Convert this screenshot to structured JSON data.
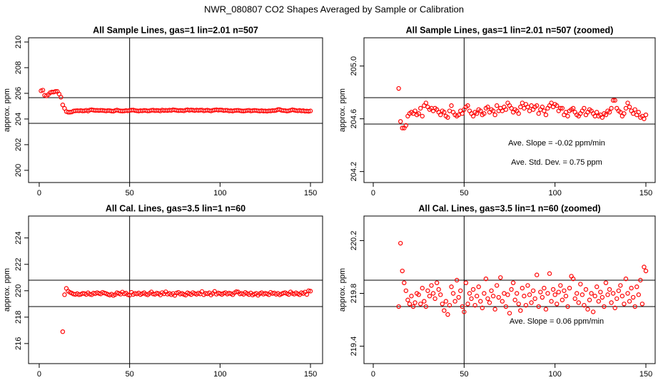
{
  "title": "NWR_080807  CO2 Shapes Averaged by Sample or Calibration",
  "chart_data": [
    {
      "type": "scatter",
      "title": "All Sample Lines, gas=1 lin=2.01 n=507",
      "ylabel": "approx. ppm",
      "color": "#ff0000",
      "xlim": [
        -5.9,
        156.7
      ],
      "ylim": [
        199.05,
        210.33
      ],
      "xticks": [
        0,
        50,
        100,
        150
      ],
      "yticks": [
        200,
        202,
        204,
        206,
        208,
        210
      ],
      "hlines": [
        205.66,
        203.66
      ],
      "vline": 50,
      "x": [
        1,
        2,
        3,
        4,
        5,
        6,
        7,
        8,
        9,
        10,
        11,
        12,
        13,
        14,
        15,
        16,
        17,
        18,
        19,
        20,
        21,
        22,
        23,
        24,
        25,
        26,
        27,
        28,
        29,
        30,
        31,
        32,
        33,
        34,
        35,
        36,
        37,
        38,
        39,
        40,
        41,
        42,
        43,
        44,
        45,
        46,
        47,
        48,
        49,
        50,
        51,
        52,
        53,
        54,
        55,
        56,
        57,
        58,
        59,
        60,
        61,
        62,
        63,
        64,
        65,
        66,
        67,
        68,
        69,
        70,
        71,
        72,
        73,
        74,
        75,
        76,
        77,
        78,
        79,
        80,
        81,
        82,
        83,
        84,
        85,
        86,
        87,
        88,
        89,
        90,
        91,
        92,
        93,
        94,
        95,
        96,
        97,
        98,
        99,
        100,
        101,
        102,
        103,
        104,
        105,
        106,
        107,
        108,
        109,
        110,
        111,
        112,
        113,
        114,
        115,
        116,
        117,
        118,
        119,
        120,
        121,
        122,
        123,
        124,
        125,
        126,
        127,
        128,
        129,
        130,
        131,
        132,
        133,
        134,
        135,
        136,
        137,
        138,
        139,
        140,
        141,
        142,
        143,
        144,
        145,
        146,
        147,
        148,
        149,
        150
      ],
      "values": [
        206.2,
        206.25,
        205.85,
        205.8,
        205.9,
        206.05,
        206.1,
        206.1,
        206.15,
        206.15,
        205.95,
        205.7,
        205.1,
        204.83,
        204.58,
        204.53,
        204.53,
        204.55,
        204.62,
        204.64,
        204.65,
        204.64,
        204.66,
        204.63,
        204.64,
        204.68,
        204.62,
        204.7,
        204.72,
        204.69,
        204.67,
        204.68,
        204.66,
        204.68,
        204.67,
        204.65,
        204.63,
        204.66,
        204.65,
        204.62,
        204.61,
        204.66,
        204.7,
        204.65,
        204.63,
        204.62,
        204.63,
        204.66,
        204.64,
        204.67,
        204.69,
        204.7,
        204.66,
        204.64,
        204.62,
        204.65,
        204.64,
        204.67,
        204.66,
        204.63,
        204.64,
        204.68,
        204.69,
        204.65,
        204.67,
        204.66,
        204.63,
        204.7,
        204.66,
        204.68,
        204.66,
        204.69,
        204.67,
        204.72,
        204.7,
        204.68,
        204.65,
        204.67,
        204.66,
        204.64,
        204.69,
        204.72,
        204.68,
        204.71,
        204.69,
        204.66,
        204.7,
        204.67,
        204.69,
        204.7,
        204.64,
        204.67,
        204.69,
        204.66,
        204.63,
        204.68,
        204.7,
        204.72,
        204.69,
        204.71,
        204.7,
        204.66,
        204.68,
        204.68,
        204.63,
        204.65,
        204.62,
        204.66,
        204.67,
        204.68,
        204.65,
        204.63,
        204.62,
        204.64,
        204.66,
        204.68,
        204.63,
        204.65,
        204.67,
        204.66,
        204.64,
        204.62,
        204.65,
        204.62,
        204.63,
        204.61,
        204.64,
        204.63,
        204.66,
        204.65,
        204.68,
        204.74,
        204.74,
        204.68,
        204.66,
        204.65,
        204.62,
        204.64,
        204.68,
        204.72,
        204.69,
        204.66,
        204.64,
        204.67,
        204.63,
        204.65,
        204.61,
        204.62,
        204.6,
        204.63
      ]
    },
    {
      "type": "scatter",
      "title": "All Sample Lines, gas=1 lin=2.01 n=507 (zoomed)",
      "ylabel": "approx. ppm",
      "color": "#ff0000",
      "xlim": [
        -5.1,
        155.1
      ],
      "ylim": [
        204.117,
        205.214
      ],
      "xticks": [
        0,
        50,
        100,
        150
      ],
      "yticks": [
        204.2,
        204.6,
        {
          "value": 205,
          "label": "205.0"
        }
      ],
      "hlines": [
        204.76,
        204.56
      ],
      "vline": 50,
      "annotations": [
        "Ave. Slope =  -0.02  ppm/min",
        "Ave. Std. Dev. =  0.75  ppm"
      ],
      "x": [
        14,
        15,
        16,
        17,
        18,
        19,
        20,
        21,
        22,
        23,
        24,
        25,
        26,
        27,
        28,
        29,
        30,
        31,
        32,
        33,
        34,
        35,
        36,
        37,
        38,
        39,
        40,
        41,
        42,
        43,
        44,
        45,
        46,
        47,
        48,
        49,
        50,
        51,
        52,
        53,
        54,
        55,
        56,
        57,
        58,
        59,
        60,
        61,
        62,
        63,
        64,
        65,
        66,
        67,
        68,
        69,
        70,
        71,
        72,
        73,
        74,
        75,
        76,
        77,
        78,
        79,
        80,
        81,
        82,
        83,
        84,
        85,
        86,
        87,
        88,
        89,
        90,
        91,
        92,
        93,
        94,
        95,
        96,
        97,
        98,
        99,
        100,
        101,
        102,
        103,
        104,
        105,
        106,
        107,
        108,
        109,
        110,
        111,
        112,
        113,
        114,
        115,
        116,
        117,
        118,
        119,
        120,
        121,
        122,
        123,
        124,
        125,
        126,
        127,
        128,
        129,
        130,
        131,
        132,
        133,
        134,
        135,
        136,
        137,
        138,
        139,
        140,
        141,
        142,
        143,
        144,
        145,
        146,
        147,
        148,
        149,
        150
      ],
      "values": [
        204.83,
        204.58,
        204.53,
        204.53,
        204.55,
        204.62,
        204.64,
        204.65,
        204.64,
        204.66,
        204.63,
        204.64,
        204.68,
        204.62,
        204.7,
        204.72,
        204.69,
        204.67,
        204.68,
        204.66,
        204.68,
        204.67,
        204.65,
        204.63,
        204.66,
        204.65,
        204.62,
        204.61,
        204.66,
        204.7,
        204.65,
        204.63,
        204.62,
        204.63,
        204.66,
        204.64,
        204.67,
        204.69,
        204.7,
        204.66,
        204.64,
        204.62,
        204.65,
        204.64,
        204.67,
        204.66,
        204.63,
        204.64,
        204.68,
        204.69,
        204.65,
        204.67,
        204.66,
        204.63,
        204.7,
        204.66,
        204.68,
        204.66,
        204.69,
        204.67,
        204.72,
        204.7,
        204.68,
        204.65,
        204.67,
        204.66,
        204.64,
        204.69,
        204.72,
        204.68,
        204.71,
        204.69,
        204.66,
        204.7,
        204.67,
        204.69,
        204.7,
        204.64,
        204.67,
        204.69,
        204.66,
        204.63,
        204.68,
        204.7,
        204.72,
        204.69,
        204.71,
        204.7,
        204.66,
        204.68,
        204.68,
        204.63,
        204.65,
        204.62,
        204.66,
        204.67,
        204.68,
        204.65,
        204.63,
        204.62,
        204.64,
        204.66,
        204.68,
        204.63,
        204.65,
        204.67,
        204.66,
        204.64,
        204.62,
        204.65,
        204.62,
        204.63,
        204.61,
        204.64,
        204.63,
        204.66,
        204.65,
        204.68,
        204.74,
        204.74,
        204.68,
        204.66,
        204.65,
        204.62,
        204.64,
        204.68,
        204.72,
        204.69,
        204.66,
        204.64,
        204.67,
        204.63,
        204.65,
        204.61,
        204.62,
        204.6,
        204.63
      ]
    },
    {
      "type": "scatter",
      "title": "All Cal. Lines, gas=3.5 lin=1 n=60",
      "ylabel": "approx. ppm",
      "color": "#ff0000",
      "xlim": [
        -5.9,
        156.7
      ],
      "ylim": [
        214.48,
        225.66
      ],
      "xticks": [
        0,
        50,
        100,
        150
      ],
      "yticks": [
        216,
        218,
        220,
        222,
        224
      ],
      "hlines": [
        220.8,
        218.8
      ],
      "vline": 50,
      "x": [
        13,
        14,
        15,
        16,
        17,
        18,
        19,
        20,
        21,
        22,
        23,
        24,
        25,
        26,
        27,
        28,
        29,
        30,
        31,
        32,
        33,
        34,
        35,
        36,
        37,
        38,
        39,
        40,
        41,
        42,
        43,
        44,
        45,
        46,
        47,
        48,
        49,
        50,
        51,
        52,
        53,
        54,
        55,
        56,
        57,
        58,
        59,
        60,
        61,
        62,
        63,
        64,
        65,
        66,
        67,
        68,
        69,
        70,
        71,
        72,
        73,
        74,
        75,
        76,
        77,
        78,
        79,
        80,
        81,
        82,
        83,
        84,
        85,
        86,
        87,
        88,
        89,
        90,
        91,
        92,
        93,
        94,
        95,
        96,
        97,
        98,
        99,
        100,
        101,
        102,
        103,
        104,
        105,
        106,
        107,
        108,
        109,
        110,
        111,
        112,
        113,
        114,
        115,
        116,
        117,
        118,
        119,
        120,
        121,
        122,
        123,
        124,
        125,
        126,
        127,
        128,
        129,
        130,
        131,
        132,
        133,
        134,
        135,
        136,
        137,
        138,
        139,
        140,
        141,
        142,
        143,
        144,
        145,
        146,
        147,
        148,
        149,
        150
      ],
      "values": [
        216.9,
        219.7,
        220.18,
        219.97,
        219.88,
        219.82,
        219.75,
        219.72,
        219.78,
        219.7,
        219.73,
        219.8,
        219.79,
        219.72,
        219.84,
        219.74,
        219.7,
        219.82,
        219.78,
        219.86,
        219.8,
        219.76,
        219.88,
        219.83,
        219.79,
        219.72,
        219.67,
        219.74,
        219.64,
        219.71,
        219.85,
        219.8,
        219.74,
        219.9,
        219.77,
        219.82,
        219.7,
        219.66,
        219.88,
        219.72,
        219.8,
        219.76,
        219.83,
        219.71,
        219.78,
        219.85,
        219.74,
        219.69,
        219.8,
        219.91,
        219.76,
        219.73,
        219.82,
        219.78,
        219.68,
        219.86,
        219.77,
        219.92,
        219.74,
        219.8,
        219.7,
        219.79,
        219.65,
        219.83,
        219.88,
        219.75,
        219.8,
        219.72,
        219.67,
        219.84,
        219.78,
        219.71,
        219.86,
        219.79,
        219.73,
        219.82,
        219.76,
        219.94,
        219.7,
        219.81,
        219.77,
        219.84,
        219.68,
        219.8,
        219.95,
        219.74,
        219.83,
        219.79,
        219.72,
        219.81,
        219.86,
        219.75,
        219.82,
        219.78,
        219.7,
        219.84,
        219.93,
        219.91,
        219.76,
        219.8,
        219.73,
        219.87,
        219.79,
        219.71,
        219.83,
        219.68,
        219.75,
        219.8,
        219.66,
        219.78,
        219.85,
        219.74,
        219.81,
        219.77,
        219.7,
        219.88,
        219.79,
        219.83,
        219.73,
        219.8,
        219.69,
        219.76,
        219.82,
        219.86,
        219.78,
        219.72,
        219.91,
        219.8,
        219.74,
        219.84,
        219.77,
        219.7,
        219.85,
        219.79,
        219.9,
        219.72,
        220.0,
        219.97
      ]
    },
    {
      "type": "scatter",
      "title": "All Cal. Lines, gas=3.5 lin=1 n=60 (zoomed)",
      "ylabel": "approx. ppm",
      "color": "#ff0000",
      "xlim": [
        -5.1,
        155.1
      ],
      "ylim": [
        219.268,
        220.386
      ],
      "xticks": [
        0,
        50,
        100,
        150
      ],
      "yticks": [
        219.4,
        219.8,
        220.2
      ],
      "hlines": [
        219.9,
        219.7
      ],
      "vline": 50,
      "annotations": [
        "Ave. Slope =  0.06  ppm/min"
      ],
      "x": [
        14,
        15,
        16,
        17,
        18,
        19,
        20,
        21,
        22,
        23,
        24,
        25,
        26,
        27,
        28,
        29,
        30,
        31,
        32,
        33,
        34,
        35,
        36,
        37,
        38,
        39,
        40,
        41,
        42,
        43,
        44,
        45,
        46,
        47,
        48,
        49,
        50,
        51,
        52,
        53,
        54,
        55,
        56,
        57,
        58,
        59,
        60,
        61,
        62,
        63,
        64,
        65,
        66,
        67,
        68,
        69,
        70,
        71,
        72,
        73,
        74,
        75,
        76,
        77,
        78,
        79,
        80,
        81,
        82,
        83,
        84,
        85,
        86,
        87,
        88,
        89,
        90,
        91,
        92,
        93,
        94,
        95,
        96,
        97,
        98,
        99,
        100,
        101,
        102,
        103,
        104,
        105,
        106,
        107,
        108,
        109,
        110,
        111,
        112,
        113,
        114,
        115,
        116,
        117,
        118,
        119,
        120,
        121,
        122,
        123,
        124,
        125,
        126,
        127,
        128,
        129,
        130,
        131,
        132,
        133,
        134,
        135,
        136,
        137,
        138,
        139,
        140,
        141,
        142,
        143,
        144,
        145,
        146,
        147,
        148,
        149,
        150
      ],
      "values": [
        219.7,
        220.18,
        219.97,
        219.88,
        219.82,
        219.75,
        219.72,
        219.78,
        219.7,
        219.73,
        219.8,
        219.79,
        219.72,
        219.84,
        219.74,
        219.7,
        219.82,
        219.78,
        219.86,
        219.8,
        219.76,
        219.88,
        219.83,
        219.79,
        219.72,
        219.67,
        219.74,
        219.64,
        219.71,
        219.85,
        219.8,
        219.74,
        219.9,
        219.77,
        219.82,
        219.7,
        219.66,
        219.88,
        219.72,
        219.8,
        219.76,
        219.83,
        219.71,
        219.78,
        219.85,
        219.74,
        219.69,
        219.8,
        219.91,
        219.76,
        219.73,
        219.82,
        219.78,
        219.68,
        219.86,
        219.77,
        219.92,
        219.74,
        219.8,
        219.7,
        219.79,
        219.65,
        219.83,
        219.88,
        219.75,
        219.8,
        219.72,
        219.67,
        219.84,
        219.78,
        219.71,
        219.86,
        219.79,
        219.73,
        219.82,
        219.76,
        219.94,
        219.7,
        219.81,
        219.77,
        219.84,
        219.68,
        219.8,
        219.95,
        219.74,
        219.83,
        219.79,
        219.72,
        219.81,
        219.86,
        219.75,
        219.82,
        219.78,
        219.7,
        219.84,
        219.93,
        219.91,
        219.76,
        219.8,
        219.73,
        219.87,
        219.79,
        219.71,
        219.83,
        219.68,
        219.75,
        219.8,
        219.66,
        219.78,
        219.85,
        219.74,
        219.81,
        219.77,
        219.7,
        219.88,
        219.79,
        219.83,
        219.73,
        219.8,
        219.69,
        219.76,
        219.82,
        219.86,
        219.78,
        219.72,
        219.91,
        219.8,
        219.74,
        219.84,
        219.77,
        219.7,
        219.85,
        219.79,
        219.9,
        219.72,
        220.0,
        219.97
      ]
    }
  ]
}
